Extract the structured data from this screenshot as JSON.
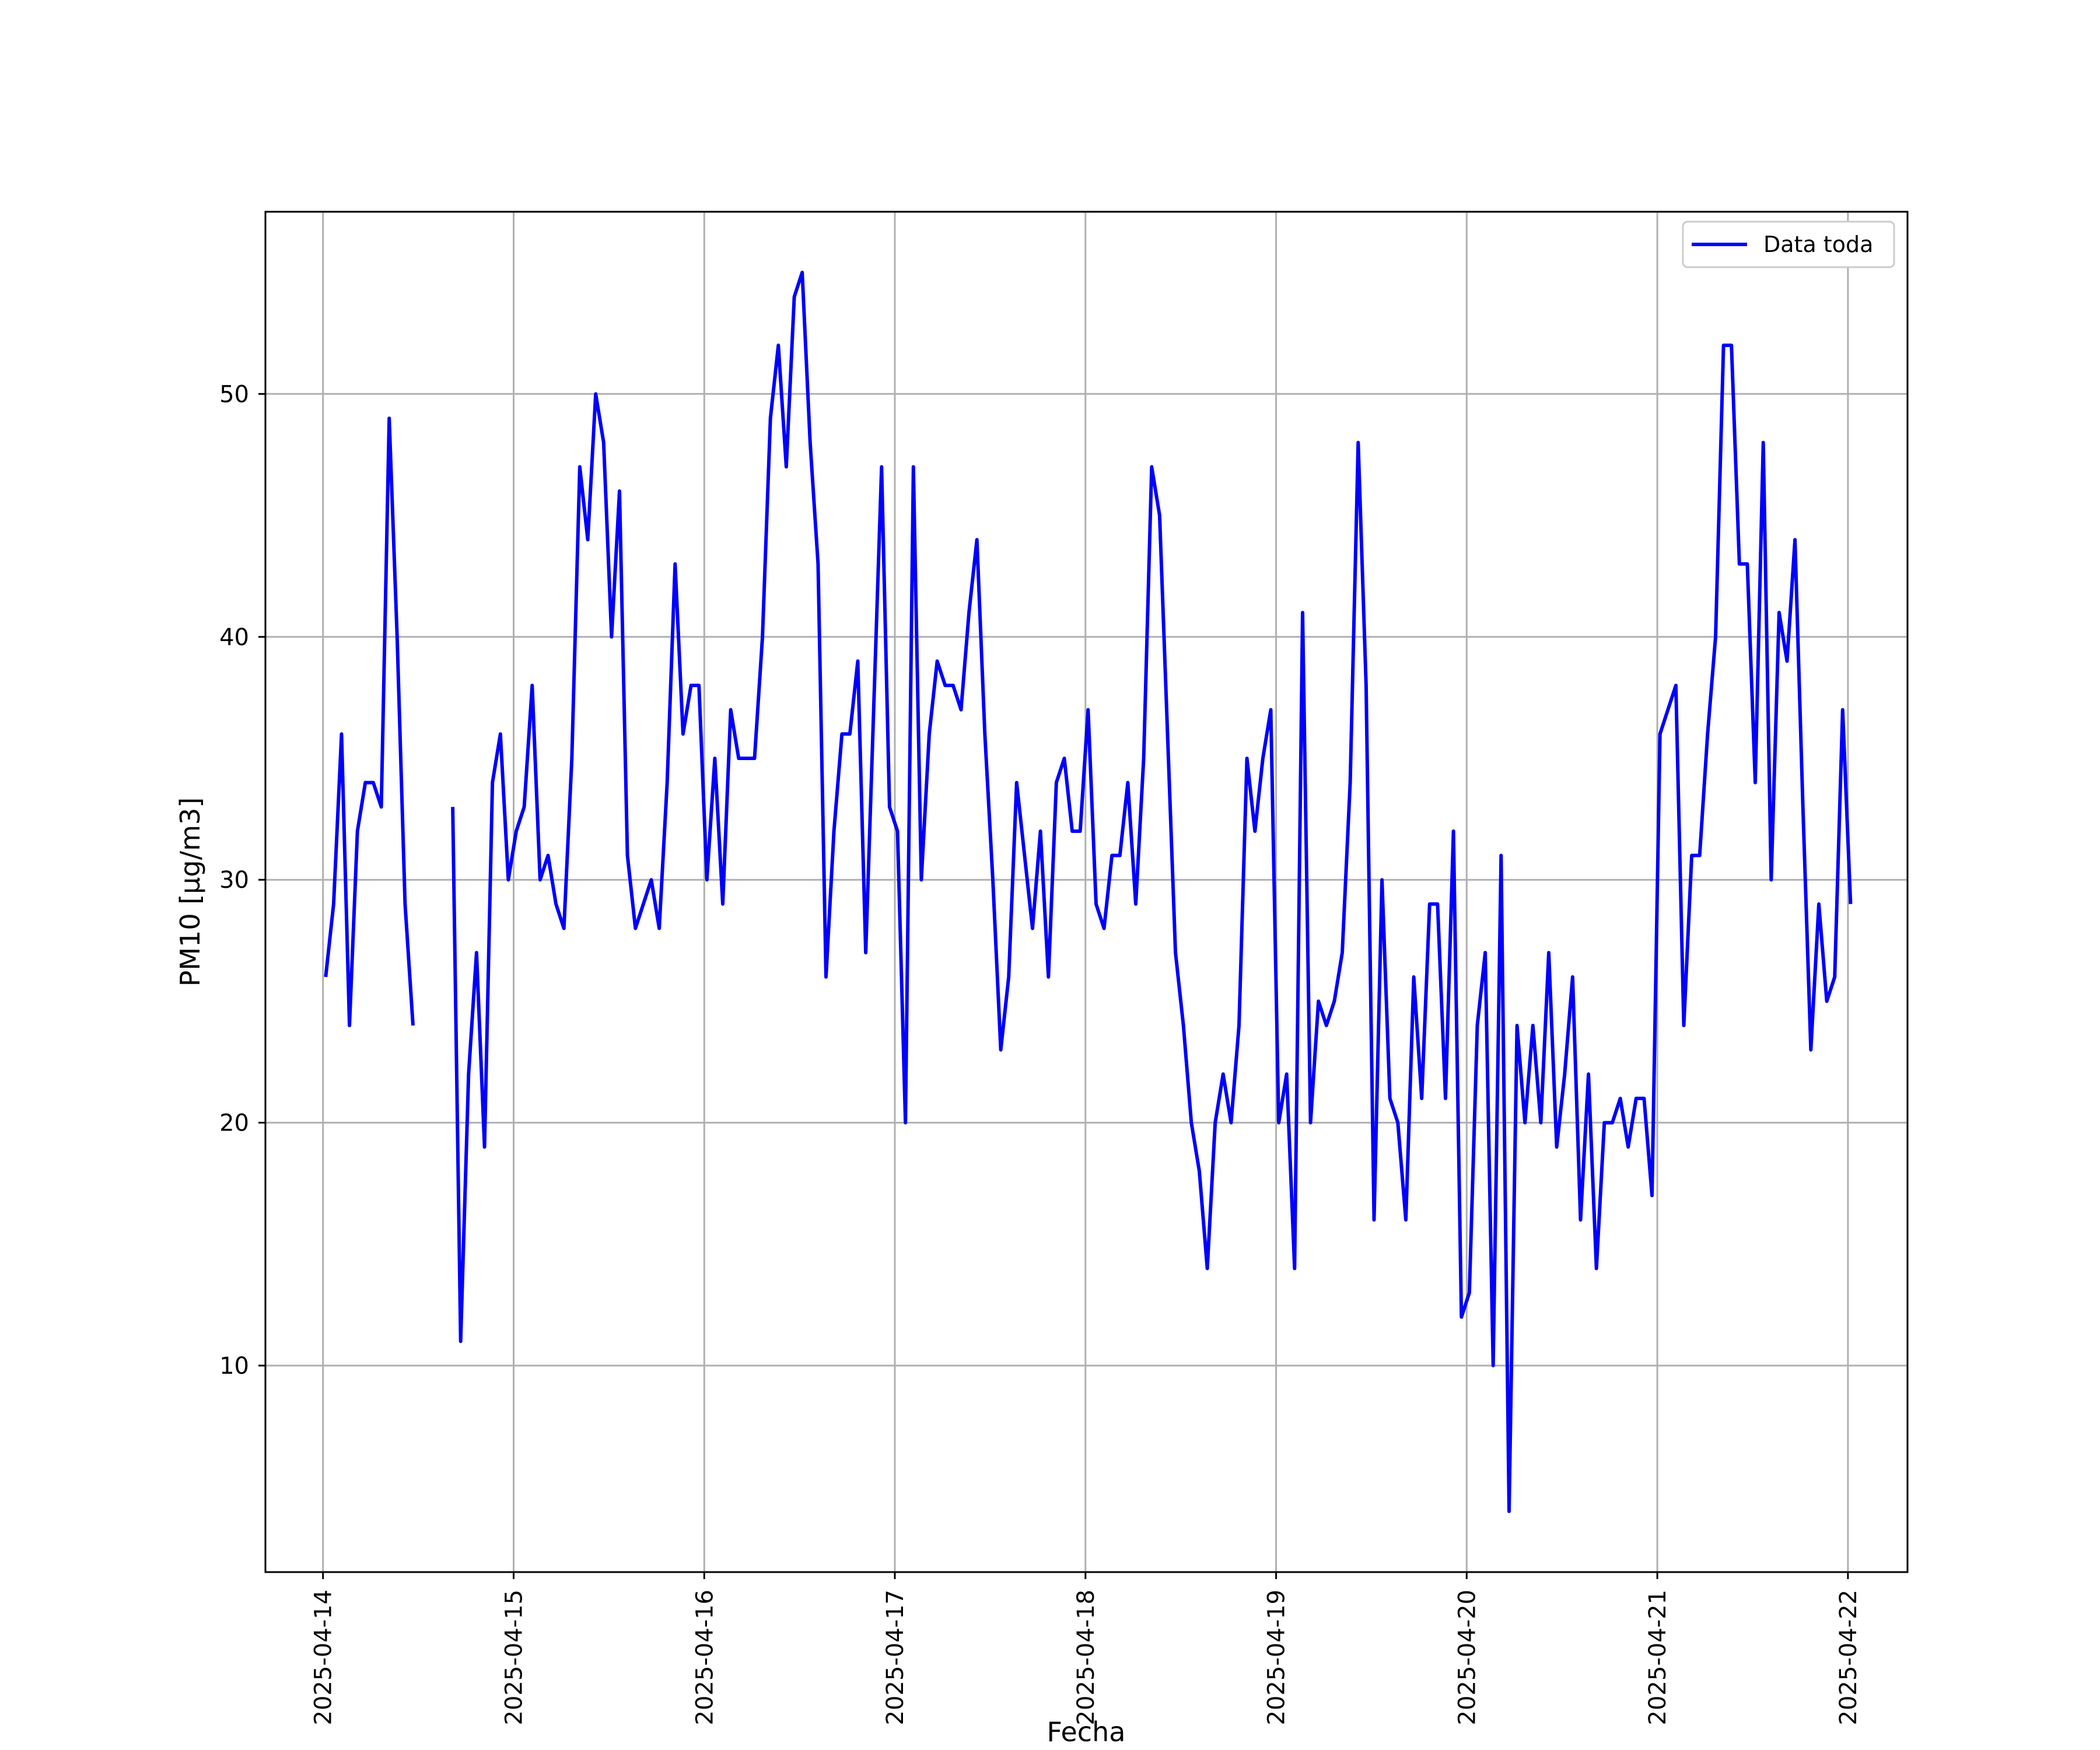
{
  "chart_data": {
    "type": "line",
    "title": "",
    "xlabel": "Fecha",
    "ylabel": "PM10 [μg/m3]",
    "ylim": [
      1.5,
      57.5
    ],
    "xlim": [
      "2025-04-13T16:45",
      "2025-04-22T07:30"
    ],
    "grid": true,
    "legend_position": "top-right",
    "x_tick_labels": [
      "2025-04-14",
      "2025-04-15",
      "2025-04-16",
      "2025-04-17",
      "2025-04-18",
      "2025-04-19",
      "2025-04-20",
      "2025-04-21",
      "2025-04-22"
    ],
    "y_ticks": [
      10,
      20,
      30,
      40,
      50
    ],
    "colors": {
      "series": "#0000ff",
      "grid": "#b0b0b0",
      "axes": "#000000"
    },
    "series": [
      {
        "name": "Data toda",
        "color": "#0000ff",
        "start": "2025-04-14T00:20",
        "step_minutes": 60,
        "values": [
          26,
          29,
          36,
          24,
          32,
          34,
          34,
          33,
          49,
          40,
          29,
          24,
          null,
          null,
          null,
          null,
          33,
          11,
          22,
          27,
          19,
          34,
          36,
          30,
          32,
          33,
          38,
          30,
          31,
          29,
          28,
          35,
          47,
          44,
          50,
          48,
          40,
          46,
          31,
          28,
          29,
          30,
          28,
          34,
          43,
          36,
          38,
          38,
          30,
          35,
          29,
          37,
          35,
          35,
          35,
          40,
          49,
          52,
          47,
          54,
          55,
          48,
          43,
          26,
          32,
          36,
          36,
          39,
          27,
          37,
          47,
          33,
          32,
          20,
          47,
          30,
          36,
          39,
          38,
          38,
          37,
          41,
          44,
          36,
          30,
          23,
          26,
          34,
          31,
          28,
          32,
          26,
          34,
          35,
          32,
          32,
          37,
          29,
          28,
          31,
          31,
          34,
          29,
          35,
          47,
          45,
          36,
          27,
          24,
          20,
          18,
          14,
          20,
          22,
          20,
          24,
          35,
          32,
          35,
          37,
          20,
          22,
          14,
          41,
          20,
          25,
          24,
          25,
          27,
          34,
          48,
          38,
          16,
          30,
          21,
          20,
          16,
          26,
          21,
          29,
          29,
          21,
          32,
          12,
          13,
          24,
          27,
          10,
          31,
          4,
          24,
          20,
          24,
          20,
          27,
          19,
          22,
          26,
          16,
          22,
          14,
          20,
          20,
          21,
          19,
          21,
          21,
          17,
          36,
          37,
          38,
          24,
          31,
          31,
          36,
          40,
          52,
          52,
          43,
          43,
          34,
          48,
          30,
          41,
          39,
          44,
          33,
          23,
          29,
          25,
          26,
          37,
          29
        ]
      }
    ]
  }
}
